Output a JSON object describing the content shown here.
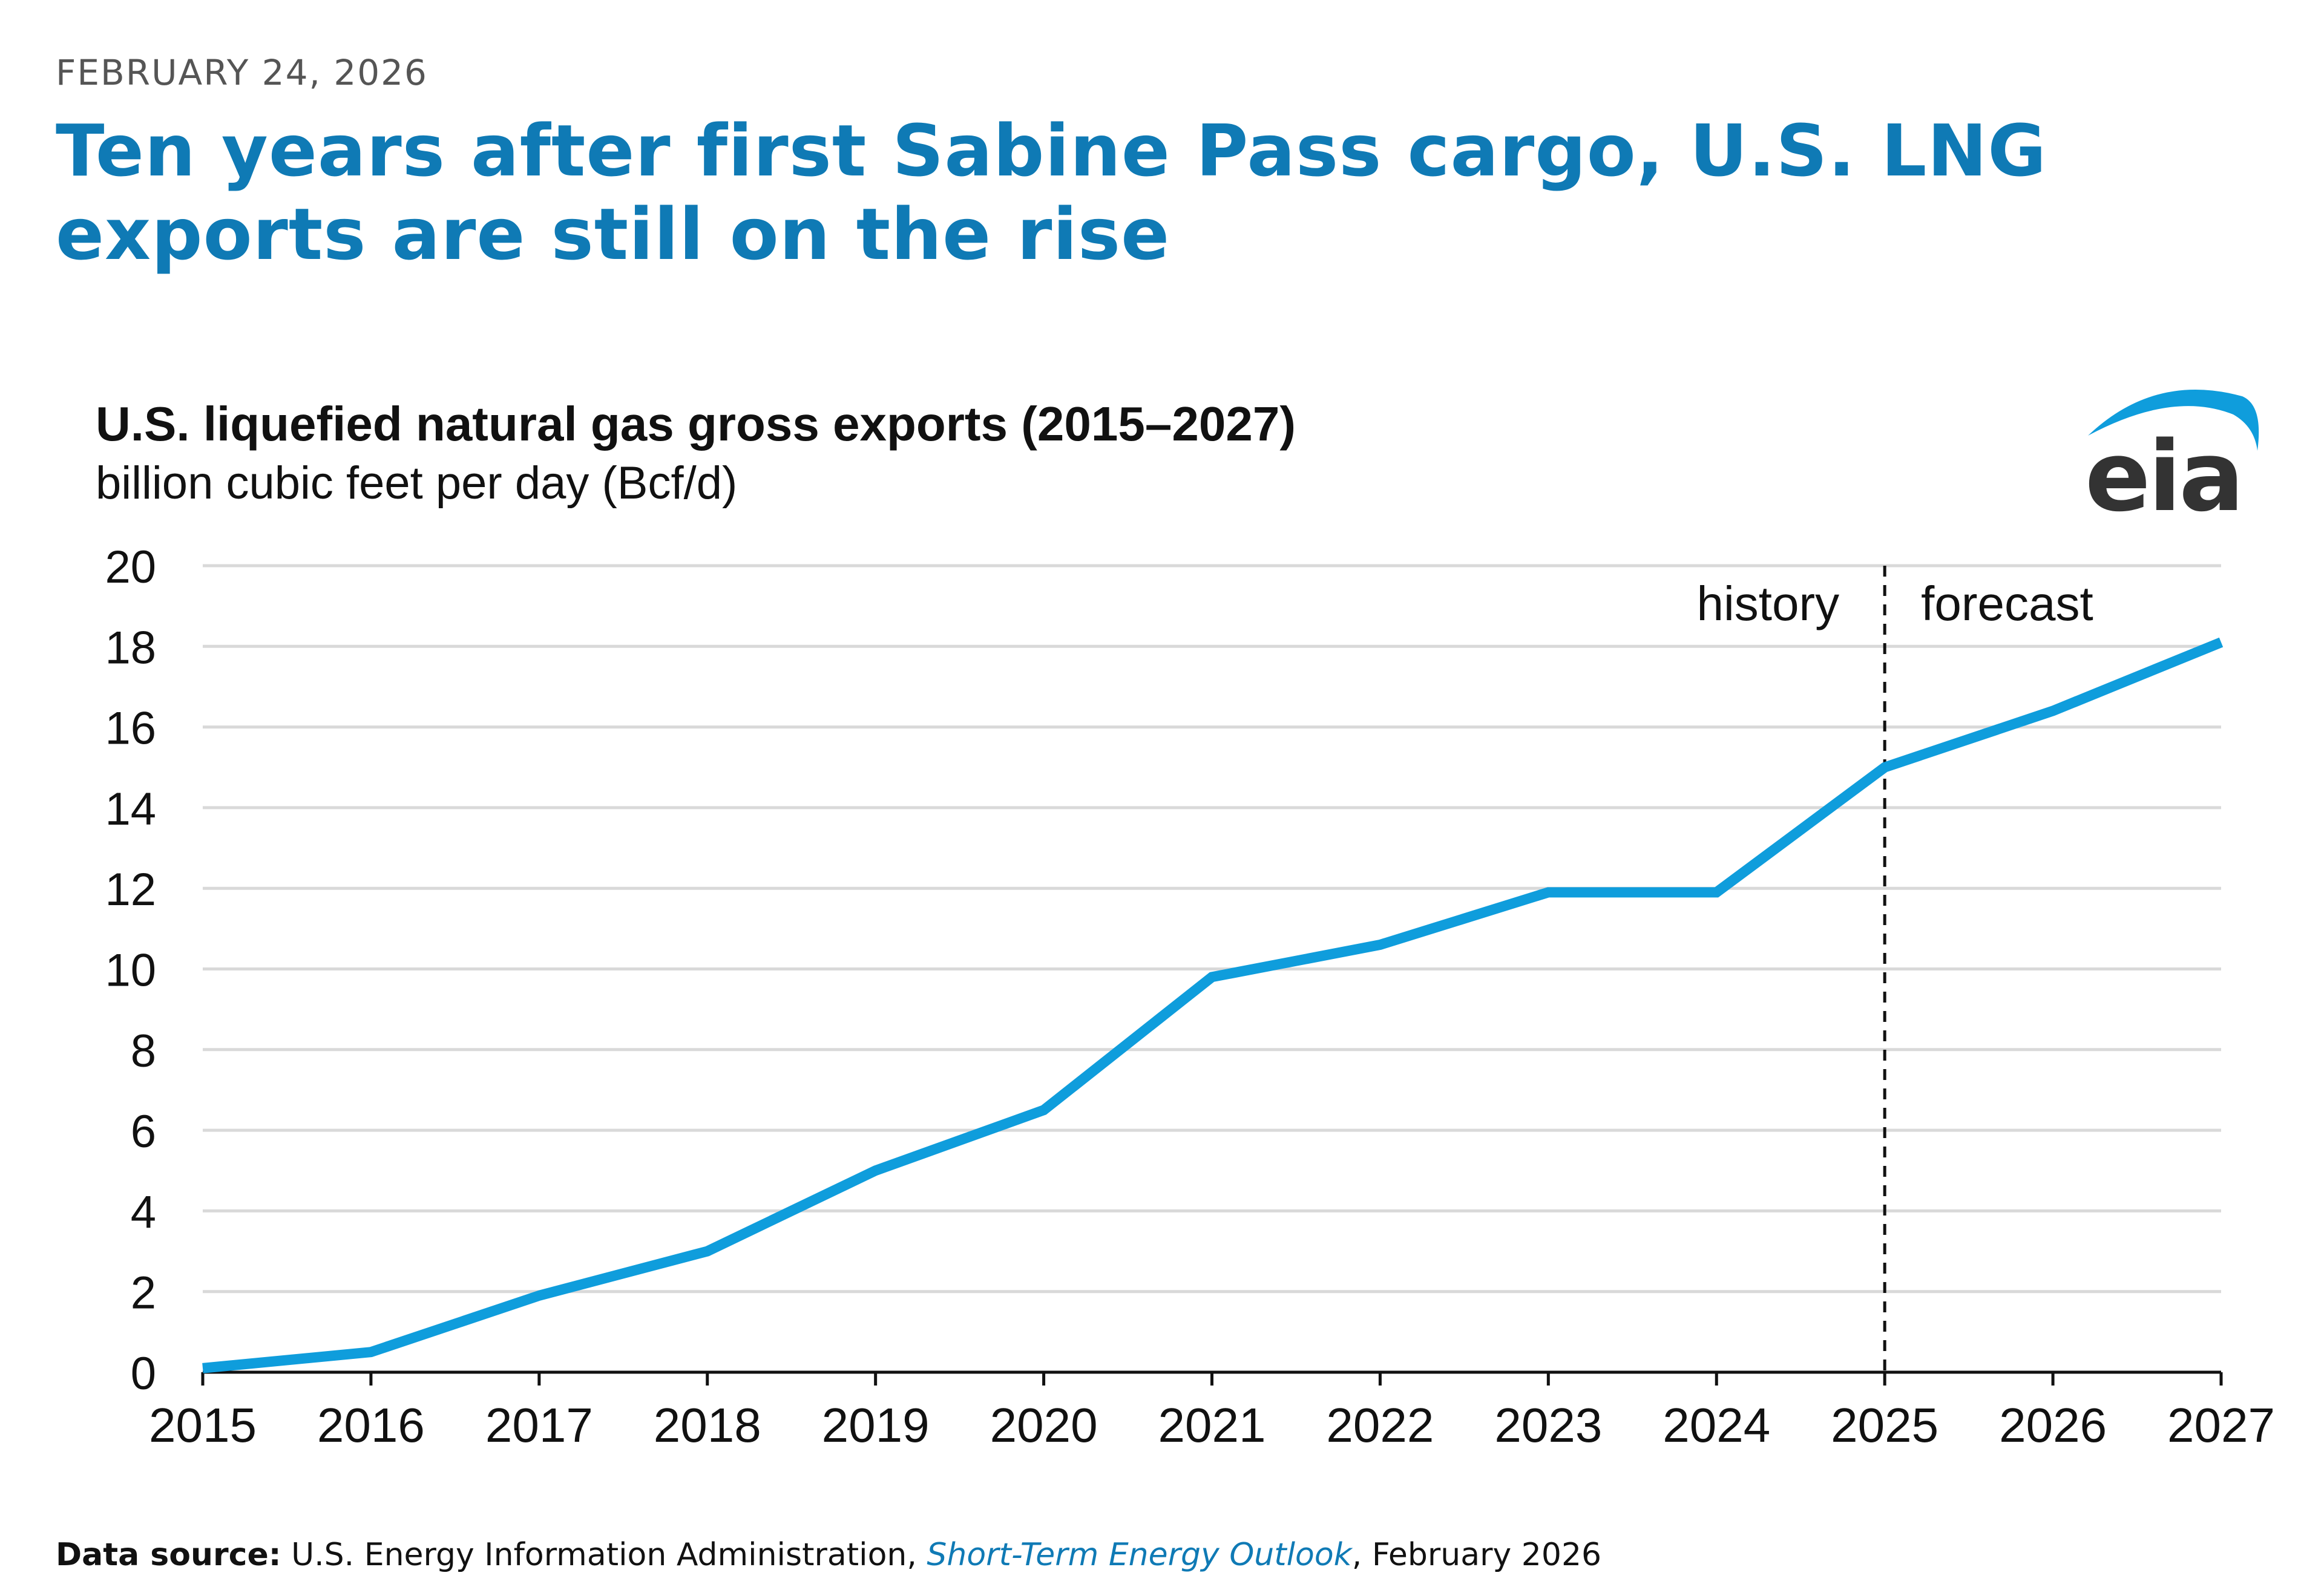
{
  "header": {
    "date": "FEBRUARY 24, 2026",
    "headline": "Ten years after first Sabine Pass cargo, U.S. LNG exports are still on the rise"
  },
  "logo": {
    "text": "eia",
    "icon": "eia-logo",
    "arc_color": "#0f9ddc",
    "text_color": "#333333"
  },
  "footer": {
    "label": "Data source:",
    "agency": "U.S. Energy Information Administration,",
    "publication": "Short-Term Energy Outlook",
    "date": ", February 2026"
  },
  "colors": {
    "line": "#0f9ddc",
    "title": "#0f7ab5",
    "grid": "#d9d9d9"
  },
  "chart_data": {
    "type": "line",
    "title": "U.S. liquefied natural gas gross exports (2015–2027)",
    "ylabel": "billion cubic feet per day (Bcf/d)",
    "xlabel": "",
    "categories": [
      "2015",
      "2016",
      "2017",
      "2018",
      "2019",
      "2020",
      "2021",
      "2022",
      "2023",
      "2024",
      "2025",
      "2026",
      "2027"
    ],
    "series": [
      {
        "name": "U.S. LNG gross exports",
        "values": [
          0.1,
          0.5,
          1.9,
          3.0,
          5.0,
          6.5,
          9.8,
          10.6,
          11.9,
          11.9,
          15.0,
          16.4,
          18.1
        ]
      }
    ],
    "ylim": [
      0,
      20
    ],
    "yticks": [
      0,
      2,
      4,
      6,
      8,
      10,
      12,
      14,
      16,
      18,
      20
    ],
    "grid": true,
    "divider": {
      "at": "2025",
      "left_label": "history",
      "right_label": "forecast"
    }
  }
}
